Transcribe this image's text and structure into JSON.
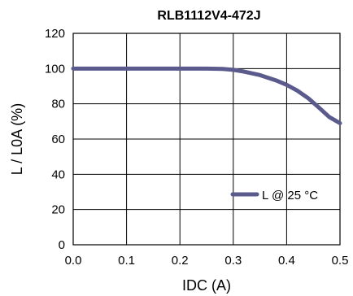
{
  "chart_data": {
    "type": "line",
    "title": "RLB1112V4-472J",
    "xlabel": "IDC (A)",
    "ylabel": "L / L0A (%)",
    "xlim": [
      0,
      0.5
    ],
    "ylim": [
      0,
      120
    ],
    "x_ticks": [
      "0.0",
      "0.1",
      "0.2",
      "0.3",
      "0.4",
      "0.5"
    ],
    "y_ticks": [
      "0",
      "20",
      "40",
      "60",
      "80",
      "100",
      "120"
    ],
    "grid": true,
    "legend_position": "bottom-right",
    "series": [
      {
        "name": "L @ 25 °C",
        "color": "#5a5a8c",
        "x": [
          0,
          0.05,
          0.1,
          0.15,
          0.2,
          0.25,
          0.28,
          0.3,
          0.32,
          0.35,
          0.38,
          0.4,
          0.42,
          0.44,
          0.46,
          0.48,
          0.5
        ],
        "y": [
          100,
          100,
          100,
          100,
          100,
          100,
          99.8,
          99.3,
          98.3,
          96.3,
          93.3,
          90.8,
          87.5,
          83.3,
          78,
          72.5,
          69
        ]
      }
    ]
  }
}
